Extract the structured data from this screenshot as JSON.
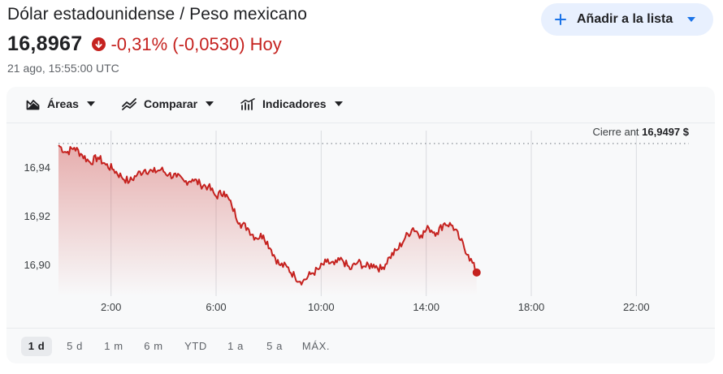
{
  "header": {
    "title": "Dólar estadounidense / Peso mexicano",
    "price": "16,8967",
    "change": "-0,31% (-0,0530) Hoy",
    "timestamp": "21 ago, 15:55:00 UTC",
    "down_color": "#c5221f"
  },
  "watchlist_button": {
    "label": "Añadir a la lista",
    "icon": "plus-icon",
    "accent": "#1a73e8"
  },
  "toolbar": {
    "areas_label": "Áreas",
    "compare_label": "Comparar",
    "indicators_label": "Indicadores"
  },
  "ranges": [
    {
      "label": "1 d",
      "active": true
    },
    {
      "label": "5 d",
      "active": false
    },
    {
      "label": "1 m",
      "active": false
    },
    {
      "label": "6 m",
      "active": false
    },
    {
      "label": "YTD",
      "active": false
    },
    {
      "label": "1 a",
      "active": false
    },
    {
      "label": "5 a",
      "active": false
    },
    {
      "label": "MÁX.",
      "active": false
    }
  ],
  "chart_data": {
    "type": "area",
    "x_unit": "hours",
    "xlim": [
      0,
      24
    ],
    "ylim": [
      16.887,
      16.955
    ],
    "x_ticks": [
      2,
      6,
      10,
      14,
      18,
      22
    ],
    "x_tick_labels": [
      "2:00",
      "6:00",
      "10:00",
      "14:00",
      "18:00",
      "22:00"
    ],
    "y_ticks": [
      16.9,
      16.92,
      16.94
    ],
    "y_tick_labels": [
      "16,90",
      "16,92",
      "16,94"
    ],
    "grid": true,
    "prev_close": 16.9497,
    "prev_close_label": "Cierre ant",
    "prev_close_value": "16,9497 $",
    "line_color": "#c5221f",
    "series": [
      {
        "x": [
          0.0,
          0.3,
          0.6,
          0.9,
          1.2,
          1.5,
          1.8,
          2.1,
          2.4,
          2.7,
          3.0,
          3.3,
          3.6,
          3.9,
          4.2,
          4.5,
          4.8,
          5.1,
          5.4,
          5.7,
          6.0,
          6.3,
          6.6,
          6.9,
          7.2,
          7.5,
          7.8,
          8.1,
          8.4,
          8.7,
          9.0,
          9.3,
          9.6,
          9.9,
          10.2,
          10.5,
          10.8,
          11.1,
          11.4,
          11.7,
          12.0,
          12.3,
          12.6,
          12.9,
          13.2,
          13.5,
          13.8,
          14.1,
          14.4,
          14.7,
          15.0,
          15.3,
          15.6,
          15.92
        ],
        "y": [
          16.949,
          16.946,
          16.948,
          16.945,
          16.942,
          16.944,
          16.941,
          16.939,
          16.936,
          16.934,
          16.937,
          16.939,
          16.938,
          16.939,
          16.937,
          16.936,
          16.934,
          16.935,
          16.933,
          16.932,
          16.928,
          16.93,
          16.924,
          16.917,
          16.915,
          16.911,
          16.912,
          16.906,
          16.9,
          16.899,
          16.895,
          16.893,
          16.896,
          16.898,
          16.901,
          16.9,
          16.902,
          16.898,
          16.901,
          16.899,
          16.9,
          16.898,
          16.903,
          16.906,
          16.911,
          16.915,
          16.912,
          16.915,
          16.913,
          16.917,
          16.916,
          16.91,
          16.904,
          16.8967
        ]
      }
    ]
  }
}
